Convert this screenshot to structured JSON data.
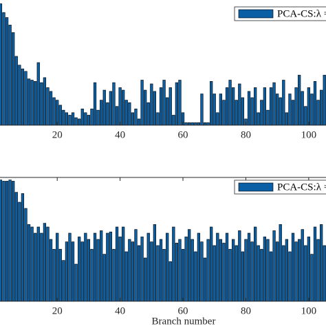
{
  "chart_data": [
    {
      "type": "bar",
      "x": [
        2,
        3,
        4,
        5,
        6,
        7,
        8,
        9,
        10,
        11,
        12,
        13,
        14,
        15,
        16,
        17,
        18,
        19,
        20,
        21,
        22,
        23,
        24,
        25,
        26,
        27,
        28,
        29,
        30,
        31,
        32,
        33,
        34,
        35,
        36,
        37,
        38,
        39,
        40,
        41,
        42,
        43,
        44,
        45,
        46,
        47,
        48,
        49,
        50,
        51,
        52,
        53,
        54,
        55,
        56,
        57,
        58,
        59,
        60,
        61,
        62,
        63,
        64,
        65,
        66,
        67,
        68,
        69,
        70,
        71,
        72,
        73,
        74,
        75,
        76,
        77,
        78,
        79,
        80,
        81,
        82,
        83,
        84,
        85,
        86,
        87,
        88,
        89,
        90,
        91,
        92,
        93,
        94,
        95,
        96,
        97,
        98,
        99,
        100,
        101,
        102,
        103,
        104,
        105
      ],
      "series": [
        {
          "name": "PCA-CS:λ =",
          "color": "#0b5fa5",
          "values": [
            0.97,
            0.9,
            0.86,
            0.8,
            0.74,
            0.55,
            0.48,
            0.45,
            0.43,
            0.37,
            0.36,
            0.35,
            0.5,
            0.34,
            0.38,
            0.3,
            0.27,
            0.22,
            0.2,
            0.16,
            0.12,
            0.1,
            0.08,
            0.1,
            0.06,
            0.05,
            0.13,
            0.1,
            0.08,
            0.13,
            0.34,
            0.12,
            0.2,
            0.28,
            0.18,
            0.27,
            0.34,
            0.15,
            0.3,
            0.28,
            0.2,
            0.18,
            0.1,
            0.13,
            0.05,
            0.36,
            0.28,
            0.18,
            0.33,
            0.27,
            0.1,
            0.3,
            0.36,
            0.22,
            0.3,
            0.08,
            0.34,
            0.36,
            0.1,
            0.02,
            0.02,
            0.02,
            0.02,
            0.02,
            0.25,
            0.02,
            0.02,
            0.35,
            0.25,
            0.1,
            0.25,
            0.2,
            0.3,
            0.36,
            0.3,
            0.2,
            0.33,
            0.22,
            0.05,
            0.27,
            0.22,
            0.3,
            0.1,
            0.2,
            0.3,
            0.12,
            0.3,
            0.34,
            0.25,
            0.22,
            0.36,
            0.1,
            0.25,
            0.2,
            0.3,
            0.4,
            0.27,
            0.15,
            0.3,
            0.25,
            0.35,
            0.2,
            0.28,
            0.4
          ]
        }
      ],
      "xlim": [
        1.8,
        105.5
      ],
      "xticks": [
        20,
        40,
        60,
        80,
        100
      ],
      "ylim": [
        0,
        1
      ],
      "legend": "top-right"
    },
    {
      "type": "bar",
      "x_label": "Branch number",
      "x": [
        2,
        3,
        4,
        5,
        6,
        7,
        8,
        9,
        10,
        11,
        12,
        13,
        14,
        15,
        16,
        17,
        18,
        19,
        20,
        21,
        22,
        23,
        24,
        25,
        26,
        27,
        28,
        29,
        30,
        31,
        32,
        33,
        34,
        35,
        36,
        37,
        38,
        39,
        40,
        41,
        42,
        43,
        44,
        45,
        46,
        47,
        48,
        49,
        50,
        51,
        52,
        53,
        54,
        55,
        56,
        57,
        58,
        59,
        60,
        61,
        62,
        63,
        64,
        65,
        66,
        67,
        68,
        69,
        70,
        71,
        72,
        73,
        74,
        75,
        76,
        77,
        78,
        79,
        80,
        81,
        82,
        83,
        84,
        85,
        86,
        87,
        88,
        89,
        90,
        91,
        92,
        93,
        94,
        95,
        96,
        97,
        98,
        99,
        100,
        101,
        102,
        103,
        104,
        105
      ],
      "series": [
        {
          "name": "PCA-CS:λ =",
          "color": "#0b5fa5",
          "values": [
            0.98,
            0.97,
            0.97,
            0.98,
            0.97,
            0.88,
            0.8,
            0.87,
            0.75,
            0.62,
            0.6,
            0.55,
            0.6,
            0.55,
            0.63,
            0.6,
            0.5,
            0.42,
            0.55,
            0.42,
            0.33,
            0.48,
            0.55,
            0.48,
            0.3,
            0.52,
            0.48,
            0.55,
            0.5,
            0.42,
            0.55,
            0.5,
            0.57,
            0.38,
            0.55,
            0.56,
            0.42,
            0.6,
            0.52,
            0.6,
            0.4,
            0.5,
            0.48,
            0.58,
            0.45,
            0.52,
            0.35,
            0.55,
            0.48,
            0.62,
            0.45,
            0.5,
            0.42,
            0.55,
            0.32,
            0.6,
            0.47,
            0.5,
            0.42,
            0.52,
            0.58,
            0.5,
            0.4,
            0.55,
            0.48,
            0.35,
            0.5,
            0.6,
            0.45,
            0.55,
            0.5,
            0.47,
            0.55,
            0.42,
            0.5,
            0.45,
            0.57,
            0.4,
            0.5,
            0.55,
            0.48,
            0.6,
            0.45,
            0.42,
            0.52,
            0.5,
            0.4,
            0.57,
            0.48,
            0.62,
            0.45,
            0.5,
            0.4,
            0.55,
            0.48,
            0.5,
            0.58,
            0.45,
            0.52,
            0.38,
            0.6,
            0.5,
            0.62,
            0.45
          ]
        }
      ],
      "xlim": [
        1.8,
        105.5
      ],
      "xticks": [
        20,
        40,
        60,
        80,
        100
      ],
      "ylim": [
        0,
        1
      ],
      "legend": "top-right"
    }
  ]
}
